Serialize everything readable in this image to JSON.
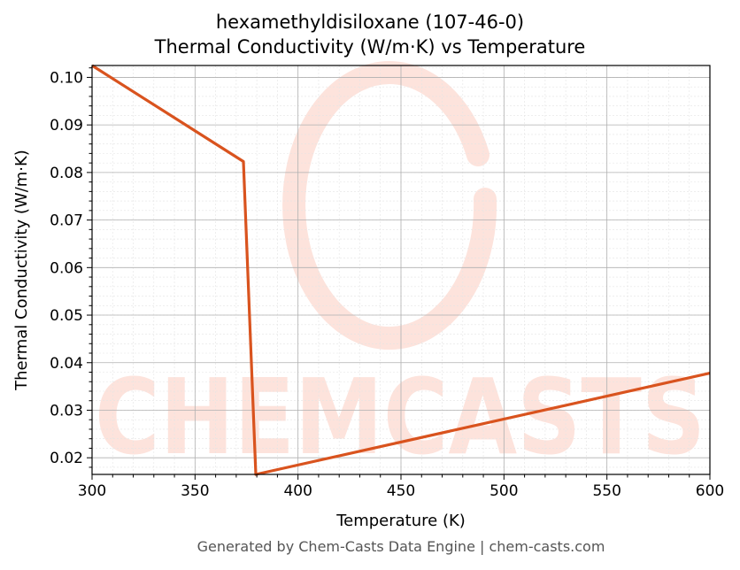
{
  "title_line1": "hexamethyldisiloxane (107-46-0)",
  "title_line2": "Thermal Conductivity (W/m·K) vs Temperature",
  "footer": "Generated by Chem-Casts Data Engine | chem-casts.com",
  "watermark": "CHEMCASTS",
  "colors": {
    "line": "#d9531e",
    "watermark": "#fde3dc",
    "grid_major": "#b0b0b0",
    "grid_minor": "#e4e4e4"
  },
  "chart_data": {
    "type": "line",
    "title": "hexamethyldisiloxane (107-46-0)\nThermal Conductivity (W/m·K) vs Temperature",
    "xlabel": "Temperature (K)",
    "ylabel": "Thermal Conductivity (W/m·K)",
    "xlim": [
      300,
      600
    ],
    "ylim": [
      0.0165,
      0.1025
    ],
    "xticks": [
      300,
      350,
      400,
      450,
      500,
      550,
      600
    ],
    "xtick_labels": [
      "300",
      "350",
      "400",
      "450",
      "500",
      "550",
      "600"
    ],
    "yticks": [
      0.02,
      0.03,
      0.04,
      0.05,
      0.06,
      0.07,
      0.08,
      0.09,
      0.1
    ],
    "ytick_labels": [
      "0.02",
      "0.03",
      "0.04",
      "0.05",
      "0.06",
      "0.07",
      "0.08",
      "0.09",
      "0.10"
    ],
    "grid": true,
    "series": [
      {
        "x": [
          300,
          373.5,
          379.5,
          600
        ],
        "y": [
          0.1025,
          0.0823,
          0.0165,
          0.0378
        ]
      }
    ]
  }
}
